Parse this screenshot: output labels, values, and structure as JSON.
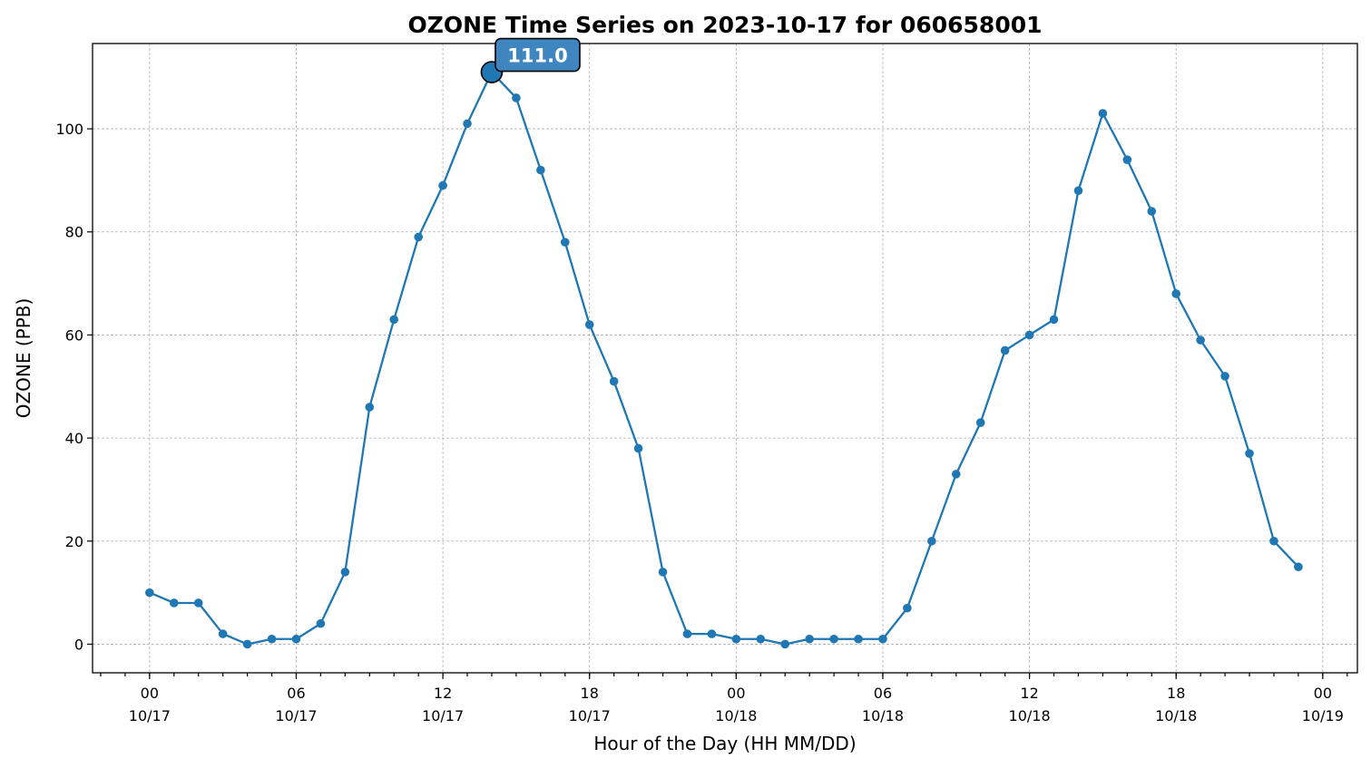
{
  "chart_data": {
    "type": "line",
    "title": "OZONE Time Series on 2023-10-17 for 060658001",
    "xlabel": "Hour of the Day (HH MM/DD)",
    "ylabel": "OZONE (PPB)",
    "x_start": "2023-10-17T00:00",
    "x_step_hours": 1,
    "xlim": [
      "2023-10-16T21:40",
      "2023-10-19T01:25"
    ],
    "ylim": [
      -5.55,
      116.55
    ],
    "y_ticks": [
      0,
      20,
      40,
      60,
      80,
      100
    ],
    "x_ticks": [
      {
        "time": "2023-10-17T00:00",
        "hour": "00",
        "date": "10/17"
      },
      {
        "time": "2023-10-17T06:00",
        "hour": "06",
        "date": "10/17"
      },
      {
        "time": "2023-10-17T12:00",
        "hour": "12",
        "date": "10/17"
      },
      {
        "time": "2023-10-17T18:00",
        "hour": "18",
        "date": "10/17"
      },
      {
        "time": "2023-10-18T00:00",
        "hour": "00",
        "date": "10/18"
      },
      {
        "time": "2023-10-18T06:00",
        "hour": "06",
        "date": "10/18"
      },
      {
        "time": "2023-10-18T12:00",
        "hour": "12",
        "date": "10/18"
      },
      {
        "time": "2023-10-18T18:00",
        "hour": "18",
        "date": "10/18"
      },
      {
        "time": "2023-10-19T00:00",
        "hour": "00",
        "date": "10/19"
      }
    ],
    "grid": true,
    "series": [
      {
        "color": "#1f77b4",
        "values": [
          10,
          8,
          8,
          2,
          0,
          1,
          1,
          4,
          14,
          46,
          63,
          79,
          89,
          101,
          111,
          106,
          92,
          78,
          62,
          51,
          38,
          14,
          2,
          2,
          1,
          1,
          0,
          1,
          1,
          1,
          1,
          7,
          20,
          33,
          43,
          57,
          60,
          63,
          88,
          103,
          94,
          84,
          68,
          59,
          52,
          37,
          20,
          15
        ]
      }
    ],
    "annotation": {
      "text": "111.0",
      "time": "2023-10-17T14:00",
      "value": 111,
      "box_color": "#3f86c0",
      "marker_color": "#1f77b4"
    }
  }
}
